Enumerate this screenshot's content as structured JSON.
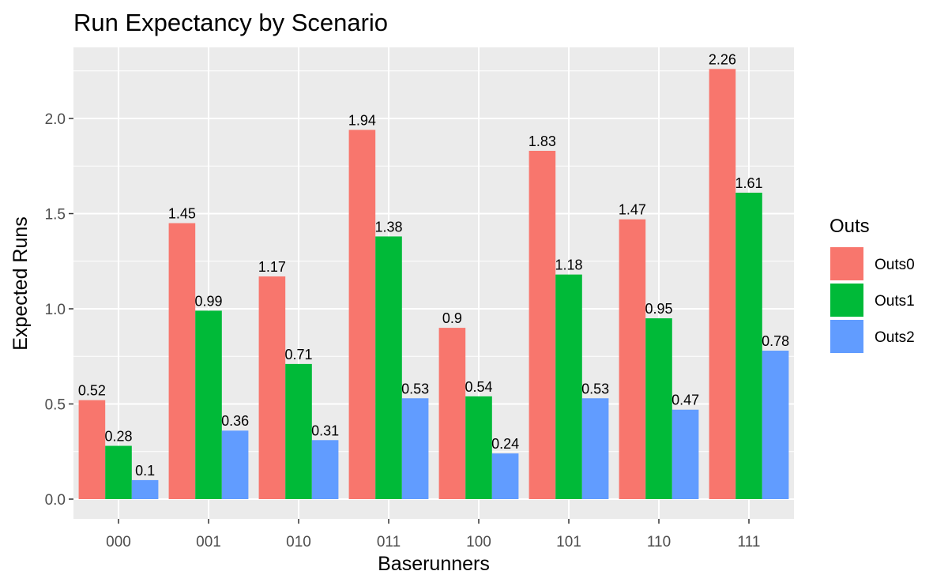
{
  "chart_data": {
    "type": "bar",
    "title": "Run Expectancy by Scenario",
    "xlabel": "Baserunners",
    "ylabel": "Expected Runs",
    "ylim": [
      0,
      2.37
    ],
    "yticks": [
      "0.0",
      "0.5",
      "1.0",
      "1.5",
      "2.0"
    ],
    "grid": true,
    "legend_position": "right",
    "legend_title": "Outs",
    "categories": [
      "000",
      "001",
      "010",
      "011",
      "100",
      "101",
      "110",
      "111"
    ],
    "series": [
      {
        "name": "Outs0",
        "color": "#F8766D",
        "values": [
          0.52,
          1.45,
          1.17,
          1.94,
          0.9,
          1.83,
          1.47,
          2.26
        ],
        "labels": [
          "0.52",
          "1.45",
          "1.17",
          "1.94",
          "0.9",
          "1.83",
          "1.47",
          "2.26"
        ]
      },
      {
        "name": "Outs1",
        "color": "#00BA38",
        "values": [
          0.28,
          0.99,
          0.71,
          1.38,
          0.54,
          1.18,
          0.95,
          1.61
        ],
        "labels": [
          "0.28",
          "0.99",
          "0.71",
          "1.38",
          "0.54",
          "1.18",
          "0.95",
          "1.61"
        ]
      },
      {
        "name": "Outs2",
        "color": "#619CFF",
        "values": [
          0.1,
          0.36,
          0.31,
          0.53,
          0.24,
          0.53,
          0.47,
          0.78
        ],
        "labels": [
          "0.1",
          "0.36",
          "0.31",
          "0.53",
          "0.24",
          "0.53",
          "0.47",
          "0.78"
        ]
      }
    ]
  }
}
